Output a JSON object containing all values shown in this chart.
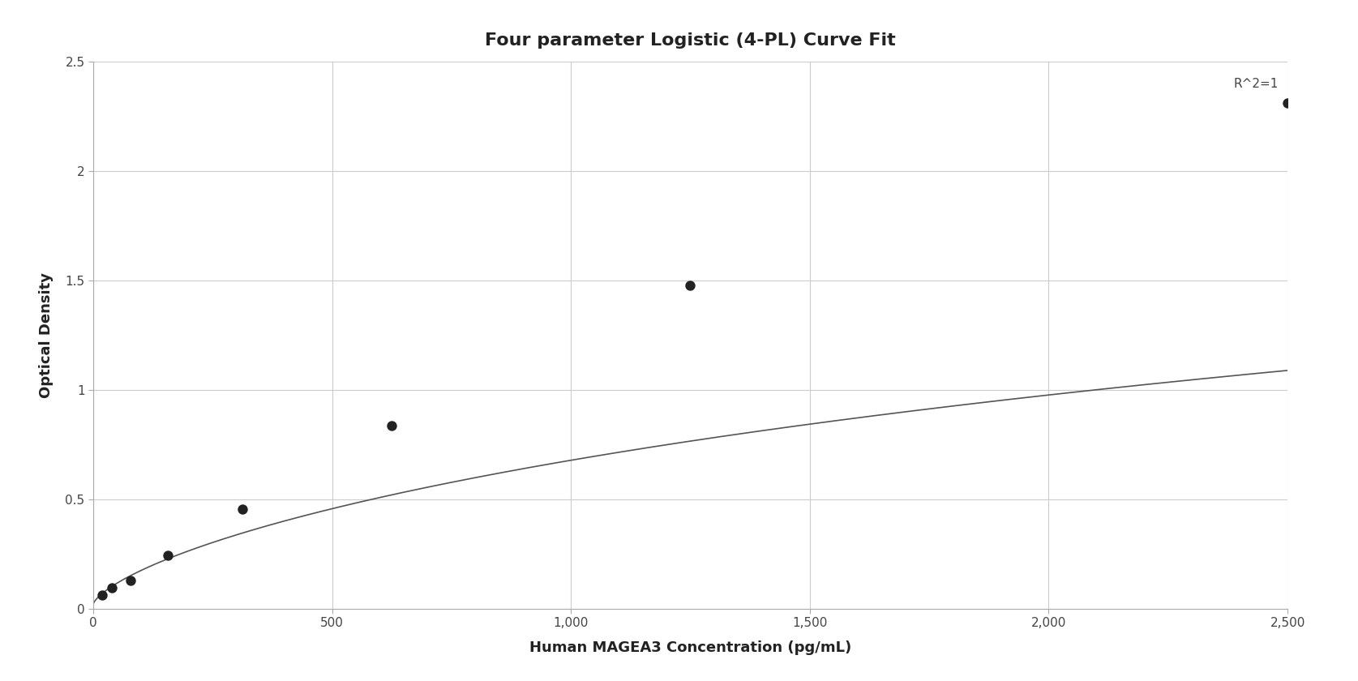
{
  "title": "Four parameter Logistic (4-PL) Curve Fit",
  "xlabel": "Human MAGEA3 Concentration (pg/mL)",
  "ylabel": "Optical Density",
  "annotation": "R^2=1",
  "background_color": "#ffffff",
  "plot_bg_color": "#ffffff",
  "grid_color": "#cccccc",
  "data_points_x": [
    19.53,
    39.06,
    78.13,
    156.25,
    312.5,
    625.0,
    1250.0,
    2500.0
  ],
  "data_points_y": [
    0.063,
    0.095,
    0.13,
    0.245,
    0.455,
    0.835,
    1.475,
    2.31
  ],
  "curve_color": "#555555",
  "dot_color": "#222222",
  "dot_size": 80,
  "xlim": [
    0,
    2500
  ],
  "ylim": [
    0,
    2.5
  ],
  "xticks": [
    0,
    500,
    1000,
    1500,
    2000,
    2500
  ],
  "xtick_labels": [
    "0",
    "500",
    "1,000",
    "1,500",
    "2,000",
    "2,500"
  ],
  "yticks": [
    0,
    0.5,
    1.0,
    1.5,
    2.0,
    2.5
  ],
  "ytick_labels": [
    "0",
    "0.5",
    "1",
    "1.5",
    "2",
    "2.5"
  ],
  "title_fontsize": 16,
  "label_fontsize": 13,
  "tick_fontsize": 11,
  "annotation_fontsize": 11
}
